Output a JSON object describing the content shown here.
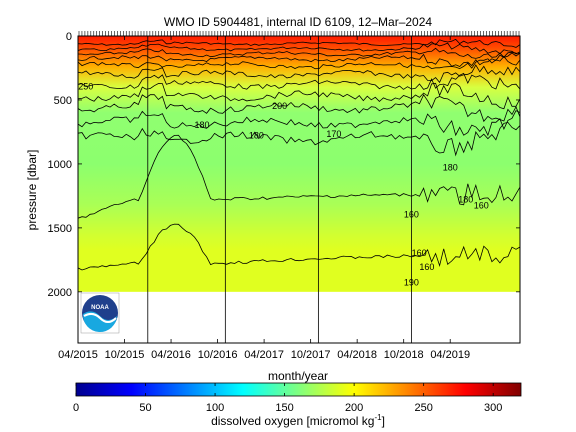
{
  "chart_data": {
    "type": "heatmap",
    "title": "WMO ID 5904481, internal ID 6109, 12–Mar–2024",
    "xlabel": "month/year",
    "ylabel": "pressure [dbar]",
    "x_tick_labels": [
      "04/2015",
      "10/2015",
      "04/2016",
      "10/2016",
      "04/2017",
      "10/2017",
      "04/2018",
      "10/2018",
      "04/2019"
    ],
    "x_tick_dates": [
      "2015-04",
      "2015-10",
      "2016-04",
      "2016-10",
      "2017-04",
      "2017-10",
      "2018-04",
      "2018-10",
      "2019-04"
    ],
    "xlim": [
      "2015-04",
      "2020-01"
    ],
    "y_ticks": [
      0,
      500,
      1000,
      1500,
      2000
    ],
    "ylim": [
      2400,
      0
    ],
    "y_reversed": true,
    "colorbar": {
      "label": "dissolved oxygen [micromol kg⁻¹]",
      "label_main": "dissolved oxygen [micromol kg",
      "label_sup": "-1",
      "label_end": "]",
      "ticks": [
        0,
        50,
        100,
        150,
        200,
        250,
        300
      ],
      "range": [
        0,
        320
      ],
      "colormap": "jet"
    },
    "contour_labels": [
      {
        "text": "180",
        "x": "2016-08",
        "y": 720
      },
      {
        "text": "180",
        "x": "2017-03",
        "y": 800
      },
      {
        "text": "200",
        "x": "2017-06",
        "y": 570
      },
      {
        "text": "170",
        "x": "2018-01",
        "y": 790
      },
      {
        "text": "250",
        "x": "2015-05",
        "y": 420
      },
      {
        "text": "180",
        "x": "2019-04",
        "y": 1050
      },
      {
        "text": "180",
        "x": "2019-06",
        "y": 1300
      },
      {
        "text": "160",
        "x": "2019-08",
        "y": 1350
      },
      {
        "text": "160",
        "x": "2018-11",
        "y": 1420
      },
      {
        "text": "160",
        "x": "2018-12",
        "y": 1720
      },
      {
        "text": "160",
        "x": "2019-01",
        "y": 1830
      },
      {
        "text": "190",
        "x": "2018-11",
        "y": 1950
      }
    ],
    "profile_date_lines": [
      "2016-01",
      "2016-11",
      "2017-11",
      "2018-11"
    ],
    "profile_max_pressure": 2000,
    "logo": "NOAA"
  }
}
